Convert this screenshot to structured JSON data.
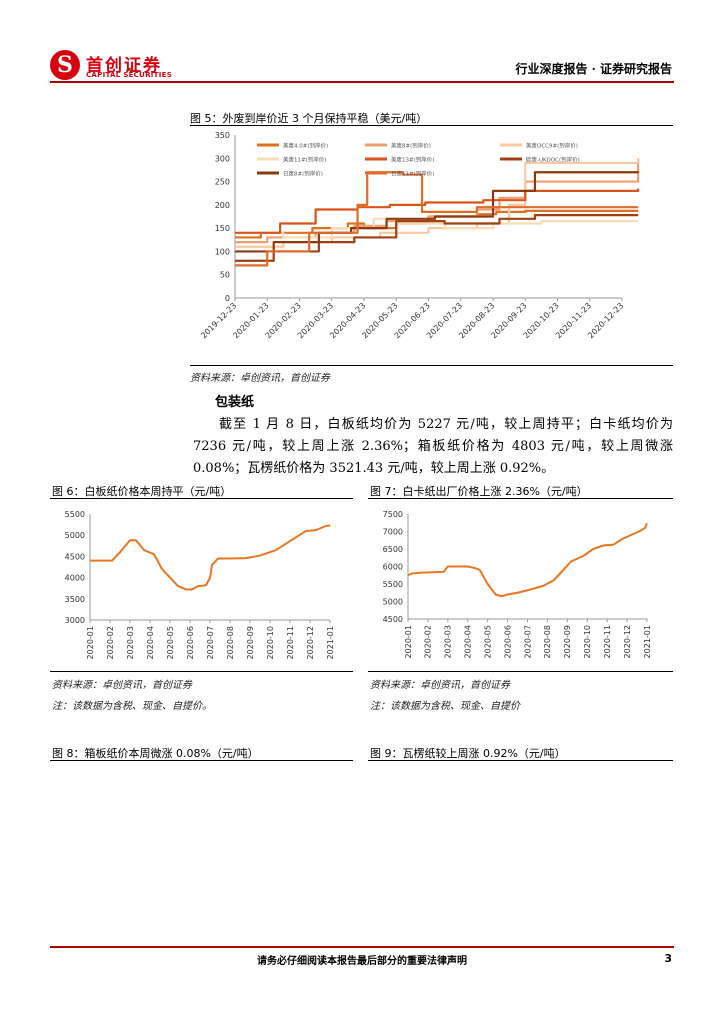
{
  "header": {
    "logo_glyph": "S",
    "company_cn": "首创证券",
    "company_en": "CAPITAL SECURITIES",
    "report_type": "行业深度报告 · 证券研究报告"
  },
  "figure5": {
    "title": "图 5：外废到岸价近 3 个月保持平稳（美元/吨）",
    "source": "资料来源：卓创资讯，首创证券",
    "chart_data": {
      "type": "line",
      "ylim": [
        0,
        350
      ],
      "yticks": [
        0,
        50,
        100,
        150,
        200,
        250,
        300,
        350
      ],
      "xtick_labels": [
        "2019-12-23",
        "2020-01-23",
        "2020-02-23",
        "2020-03-23",
        "2020-04-23",
        "2020-05-23",
        "2020-06-23",
        "2020-07-23",
        "2020-08-23",
        "2020-09-23",
        "2020-10-23",
        "2020-11-23",
        "2020-12-23"
      ],
      "legend": "top",
      "series": [
        {
          "name": "美废4.0#(到岸价)",
          "color": "#e0701e",
          "x": [
            0,
            0.8,
            2.4,
            3.5,
            4.0,
            5.0,
            6.0,
            7.5,
            8.1,
            9.0,
            12.5
          ],
          "values": [
            130,
            140,
            150,
            160,
            150,
            160,
            175,
            180,
            185,
            187,
            187
          ]
        },
        {
          "name": "美废8#(到岸价)",
          "color": "#f0a070",
          "x": [
            0,
            1.0,
            2.5,
            3.7,
            4.7,
            6.0,
            7.5,
            8.2,
            9.0,
            12.5
          ],
          "values": [
            120,
            130,
            140,
            155,
            165,
            175,
            190,
            215,
            250,
            300
          ]
        },
        {
          "name": "美废OCC9#(到岸价)",
          "color": "#f7c9a0",
          "x": [
            0,
            1.5,
            3.0,
            4.5,
            6.0,
            7.5,
            8.5,
            9.0,
            12.5
          ],
          "values": [
            110,
            120,
            130,
            140,
            150,
            160,
            200,
            290,
            300
          ]
        },
        {
          "name": "美废11#(到岸价)",
          "color": "#f9dcb8",
          "x": [
            0,
            1.5,
            3.0,
            4.3,
            5.0,
            6.5,
            8.0,
            9.5,
            12.5
          ],
          "values": [
            140,
            130,
            150,
            170,
            160,
            150,
            160,
            165,
            165
          ]
        },
        {
          "name": "美废13#(到岸价)",
          "color": "#d9541a",
          "x": [
            0,
            1.4,
            2.5,
            3.8,
            4.8,
            5.9,
            7.7,
            9.0,
            12.5
          ],
          "values": [
            140,
            160,
            190,
            195,
            200,
            205,
            210,
            230,
            235
          ]
        },
        {
          "name": "欧废-UKDOC(到岸价)",
          "color": "#a04010",
          "x": [
            0,
            1.2,
            2.6,
            3.7,
            5.0,
            6.5,
            8.2,
            9.3,
            12.5
          ],
          "values": [
            80,
            100,
            120,
            130,
            165,
            160,
            170,
            178,
            178
          ]
        },
        {
          "name": "日废8#(到岸价)",
          "color": "#8b3a10",
          "x": [
            0,
            1.2,
            2.6,
            3.6,
            4.7,
            6.2,
            8.0,
            9.3,
            12.5
          ],
          "values": [
            100,
            120,
            140,
            150,
            170,
            175,
            230,
            270,
            272
          ]
        },
        {
          "name": "日废11#(到岸价)",
          "color": "#e06b28",
          "x": [
            0,
            1.0,
            2.3,
            3.8,
            4.1,
            5.2,
            5.8,
            7.5,
            9.2,
            12.5
          ],
          "values": [
            70,
            100,
            140,
            200,
            270,
            265,
            185,
            195,
            195,
            195
          ]
        }
      ]
    }
  },
  "section": {
    "heading": "包装纸",
    "paragraph": "截至 1 月 8 日，白板纸均价为 5227 元/吨，较上周持平；白卡纸均价为 7236 元/吨，较上周上涨 2.36%；箱板纸价格为 4803 元/吨，较上周微涨 0.08%；瓦楞纸价格为 3521.43 元/吨，较上周上涨 0.92%。"
  },
  "figure6": {
    "title": "图 6：白板纸价格本周持平（元/吨）",
    "source": "资料来源：卓创资讯，首创证券",
    "note": "注：该数据为含税、现金、自提价。",
    "chart_data": {
      "type": "line",
      "ylim": [
        3000,
        5500
      ],
      "yticks": [
        3000,
        3500,
        4000,
        4500,
        5000,
        5500
      ],
      "xtick_labels": [
        "2020-01",
        "2020-02",
        "2020-03",
        "2020-04",
        "2020-05",
        "2020-06",
        "2020-07",
        "2020-08",
        "2020-09",
        "2020-10",
        "2020-11",
        "2020-12",
        "2021-01"
      ],
      "series": [
        {
          "name": "白板纸",
          "color": "#e87722",
          "x": [
            0,
            1.1,
            1.5,
            2.0,
            2.3,
            2.7,
            3.2,
            3.6,
            4.0,
            4.4,
            4.8,
            5.1,
            5.4,
            5.8,
            6.0,
            6.1,
            6.4,
            7.0,
            7.8,
            8.5,
            9.3,
            9.8,
            10.3,
            10.8,
            11.3,
            11.8,
            12.0
          ],
          "values": [
            4400,
            4400,
            4600,
            4880,
            4880,
            4650,
            4550,
            4200,
            4000,
            3800,
            3720,
            3720,
            3800,
            3820,
            4000,
            4300,
            4450,
            4450,
            4460,
            4520,
            4650,
            4800,
            4950,
            5100,
            5120,
            5220,
            5227
          ]
        }
      ]
    }
  },
  "figure7": {
    "title": "图 7：白卡纸出厂价格上涨 2.36%（元/吨）",
    "source": "资料来源：卓创资讯，首创证券",
    "note": "注：该数据为含税、现金、自提价",
    "chart_data": {
      "type": "line",
      "ylim": [
        4500,
        7500
      ],
      "yticks": [
        4500,
        5000,
        5500,
        6000,
        6500,
        7000,
        7500
      ],
      "xtick_labels": [
        "2020-01",
        "2020-02",
        "2020-03",
        "2020-04",
        "2020-05",
        "2020-06",
        "2020-07",
        "2020-08",
        "2020-09",
        "2020-10",
        "2020-11",
        "2020-12",
        "2021-01"
      ],
      "series": [
        {
          "name": "白卡纸",
          "color": "#e87722",
          "x": [
            0,
            0.2,
            0.6,
            1.8,
            2.0,
            3.0,
            3.4,
            3.6,
            4.0,
            4.4,
            4.7,
            5.0,
            5.5,
            6.2,
            6.8,
            7.3,
            7.8,
            8.2,
            8.8,
            9.3,
            9.8,
            10.3,
            10.8,
            11.2,
            11.6,
            11.9,
            12.0
          ],
          "values": [
            5750,
            5800,
            5820,
            5850,
            6000,
            6000,
            5950,
            5900,
            5500,
            5200,
            5150,
            5200,
            5250,
            5350,
            5450,
            5600,
            5900,
            6150,
            6300,
            6500,
            6600,
            6620,
            6800,
            6900,
            7000,
            7100,
            7236
          ]
        }
      ]
    }
  },
  "figure8": {
    "title": "图 8：箱板纸价本周微涨 0.08%（元/吨）"
  },
  "figure9": {
    "title": "图 9：瓦楞纸较上周涨 0.92%（元/吨）"
  },
  "footer": {
    "disclaimer": "请务必仔细阅读本报告最后部分的重要法律声明",
    "page": "3"
  }
}
